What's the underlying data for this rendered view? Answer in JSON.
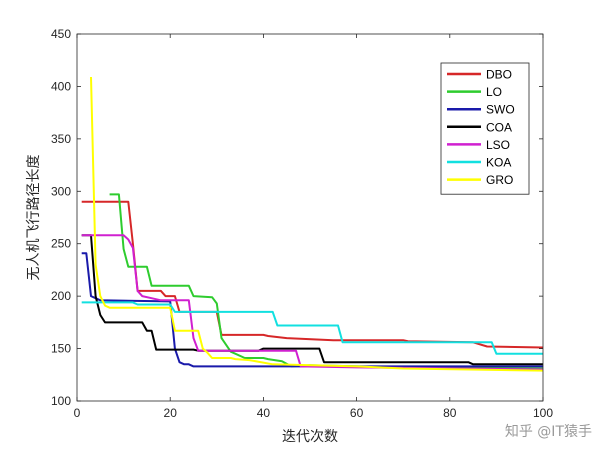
{
  "chart_data": {
    "type": "line",
    "xlabel": "迭代次数",
    "ylabel": "无人机飞行路径长度",
    "xlim": [
      0,
      100
    ],
    "ylim": [
      100,
      450
    ],
    "xticks": [
      0,
      20,
      40,
      60,
      80,
      100
    ],
    "yticks": [
      100,
      150,
      200,
      250,
      300,
      350,
      400,
      450
    ],
    "grid": false,
    "legend_position": "top-right",
    "series": [
      {
        "name": "DBO",
        "color": "#d62728",
        "points": [
          [
            1,
            290
          ],
          [
            11,
            290
          ],
          [
            12,
            250
          ],
          [
            13,
            205
          ],
          [
            18,
            205
          ],
          [
            19,
            200
          ],
          [
            21,
            200
          ],
          [
            22,
            185
          ],
          [
            30,
            185
          ],
          [
            31,
            163
          ],
          [
            40,
            163
          ],
          [
            41,
            162
          ],
          [
            45,
            160
          ],
          [
            55,
            158
          ],
          [
            70,
            158
          ],
          [
            71,
            157
          ],
          [
            85,
            156
          ],
          [
            88,
            152
          ],
          [
            100,
            151
          ]
        ]
      },
      {
        "name": "LO",
        "color": "#2ecc2e",
        "points": [
          [
            7,
            297
          ],
          [
            9,
            297
          ],
          [
            10,
            245
          ],
          [
            11,
            228
          ],
          [
            15,
            228
          ],
          [
            16,
            210
          ],
          [
            24,
            210
          ],
          [
            25,
            200
          ],
          [
            29,
            199
          ],
          [
            30,
            193
          ],
          [
            31,
            160
          ],
          [
            33,
            147
          ],
          [
            36,
            141
          ],
          [
            40,
            141
          ],
          [
            41,
            140
          ],
          [
            44,
            138
          ],
          [
            46,
            133
          ],
          [
            50,
            134
          ],
          [
            70,
            132
          ],
          [
            100,
            131
          ]
        ]
      },
      {
        "name": "SWO",
        "color": "#1a1aaa",
        "points": [
          [
            1,
            241
          ],
          [
            2,
            241
          ],
          [
            3,
            200
          ],
          [
            5,
            196
          ],
          [
            20,
            195
          ],
          [
            21,
            150
          ],
          [
            22,
            137
          ],
          [
            23,
            135
          ],
          [
            24,
            135
          ],
          [
            25,
            133
          ],
          [
            100,
            133
          ]
        ]
      },
      {
        "name": "COA",
        "color": "#000000",
        "points": [
          [
            1,
            258
          ],
          [
            3,
            258
          ],
          [
            4,
            200
          ],
          [
            5,
            182
          ],
          [
            6,
            175
          ],
          [
            14,
            175
          ],
          [
            15,
            167
          ],
          [
            16,
            167
          ],
          [
            17,
            149
          ],
          [
            25,
            149
          ],
          [
            26,
            148
          ],
          [
            39,
            148
          ],
          [
            40,
            150
          ],
          [
            52,
            150
          ],
          [
            53,
            137
          ],
          [
            84,
            137
          ],
          [
            85,
            135
          ],
          [
            100,
            135
          ]
        ]
      },
      {
        "name": "LSO",
        "color": "#d020d0",
        "points": [
          [
            1,
            258
          ],
          [
            10,
            258
          ],
          [
            11,
            254
          ],
          [
            12,
            246
          ],
          [
            13,
            205
          ],
          [
            14,
            200
          ],
          [
            16,
            198
          ],
          [
            18,
            196
          ],
          [
            24,
            196
          ],
          [
            25,
            160
          ],
          [
            26,
            148
          ],
          [
            47,
            148
          ],
          [
            48,
            133
          ],
          [
            60,
            132
          ],
          [
            100,
            130
          ]
        ]
      },
      {
        "name": "KOA",
        "color": "#12e0e0",
        "points": [
          [
            1,
            194
          ],
          [
            12,
            194
          ],
          [
            13,
            192
          ],
          [
            20,
            192
          ],
          [
            21,
            185
          ],
          [
            42,
            185
          ],
          [
            43,
            172
          ],
          [
            56,
            172
          ],
          [
            57,
            156
          ],
          [
            89,
            156
          ],
          [
            90,
            145
          ],
          [
            100,
            145
          ]
        ]
      },
      {
        "name": "GRO",
        "color": "#ffff00",
        "points": [
          [
            3,
            409
          ],
          [
            4,
            230
          ],
          [
            5,
            200
          ],
          [
            6,
            191
          ],
          [
            7,
            189
          ],
          [
            20,
            189
          ],
          [
            21,
            167
          ],
          [
            26,
            167
          ],
          [
            27,
            150
          ],
          [
            28,
            146
          ],
          [
            29,
            141
          ],
          [
            33,
            141
          ],
          [
            34,
            140
          ],
          [
            37,
            139
          ],
          [
            42,
            135
          ],
          [
            60,
            133
          ],
          [
            70,
            131
          ],
          [
            100,
            129
          ]
        ]
      }
    ]
  },
  "watermark": "知乎 @IT猿手"
}
